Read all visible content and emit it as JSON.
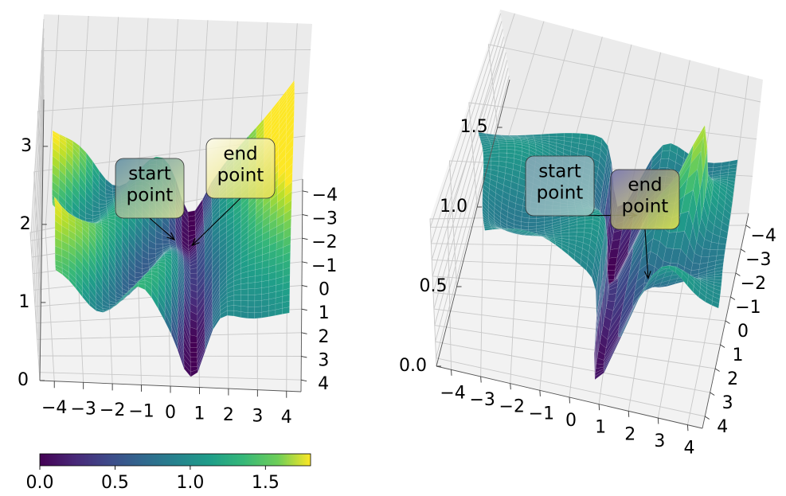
{
  "chart_data": [
    {
      "type": "surface",
      "panel": "left",
      "x_ticks": [
        "−4",
        "−3",
        "−2",
        "−1",
        "0",
        "1",
        "2",
        "3",
        "4"
      ],
      "y_ticks": [
        "−4",
        "−3",
        "−2",
        "−1",
        "0",
        "1",
        "2",
        "3",
        "4"
      ],
      "z_ticks": [
        "0",
        "1",
        "2",
        "3"
      ],
      "xlim": [
        -4.5,
        4.5
      ],
      "ylim": [
        -4.5,
        4.5
      ],
      "zlim": [
        0,
        3.6
      ],
      "colorscale": "viridis",
      "annotations": [
        {
          "text": "start\npoint",
          "lines": [
            "start",
            "point"
          ],
          "point": [
            0.2,
            -1.9,
            0.3
          ]
        },
        {
          "text": "end\npoint",
          "lines": [
            "end",
            "point"
          ],
          "point": [
            0.8,
            -1.8,
            0.2
          ]
        }
      ]
    },
    {
      "type": "surface",
      "panel": "right",
      "x_ticks": [
        "−4",
        "−3",
        "−2",
        "−1",
        "0",
        "1",
        "2",
        "3",
        "4"
      ],
      "y_ticks": [
        "−4",
        "−3",
        "−2",
        "−1",
        "0",
        "1",
        "2",
        "3",
        "4"
      ],
      "z_ticks": [
        "0.0",
        "0.5",
        "1.0",
        "1.5"
      ],
      "xlim": [
        -4.5,
        4.5
      ],
      "ylim": [
        -4.5,
        4.5
      ],
      "zlim": [
        0,
        1.8
      ],
      "colorscale": "viridis",
      "annotations": [
        {
          "text": "start\npoint",
          "lines": [
            "start",
            "point"
          ],
          "point": [
            1.2,
            -2.1,
            0.5
          ]
        },
        {
          "text": "end\npoint",
          "lines": [
            "end",
            "point"
          ],
          "point": [
            1.9,
            -0.6,
            0.2
          ]
        }
      ]
    }
  ],
  "colorbar": {
    "ticks": [
      "0.0",
      "0.5",
      "1.0",
      "1.5"
    ],
    "tick_values": [
      0.0,
      0.5,
      1.0,
      1.5
    ],
    "range": [
      0.0,
      1.8
    ],
    "colormap": "viridis"
  },
  "colors": {
    "pane": "#f2f2f2",
    "grid": "#c8c8c8",
    "viridis_low": "#440154",
    "viridis_mid": "#21918c",
    "viridis_high": "#fde725"
  }
}
